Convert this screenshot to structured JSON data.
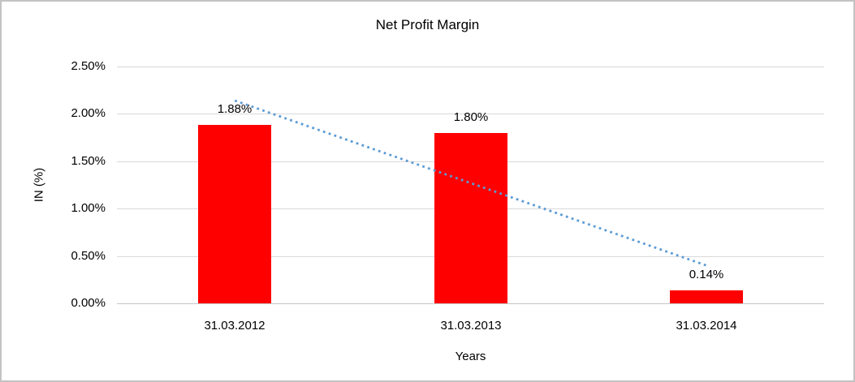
{
  "chart_data": {
    "type": "bar",
    "title": "Net Profit Margin",
    "xlabel": "Years",
    "ylabel": "IN (%)",
    "categories": [
      "31.03.2012",
      "31.03.2013",
      "31.03.2014"
    ],
    "values": [
      1.88,
      1.8,
      0.14
    ],
    "value_labels": [
      "1.88%",
      "1.80%",
      "0.14%"
    ],
    "series_name": "Net Profit Margin",
    "yticks": [
      {
        "value": 0.0,
        "label": "0.00%"
      },
      {
        "value": 0.5,
        "label": "0.50%"
      },
      {
        "value": 1.0,
        "label": "1.00%"
      },
      {
        "value": 1.5,
        "label": "1.50%"
      },
      {
        "value": 2.0,
        "label": "2.00%"
      },
      {
        "value": 2.5,
        "label": "2.50%"
      }
    ],
    "ylim": [
      0,
      2.5
    ],
    "grid": true,
    "legend": "none",
    "bar_color": "#ff0000",
    "gridline_color": "#d9d9d9",
    "trendline": {
      "type": "linear",
      "style": "dotted",
      "color": "#5b9bd5",
      "start_value": 2.14,
      "end_value": 0.4
    }
  }
}
